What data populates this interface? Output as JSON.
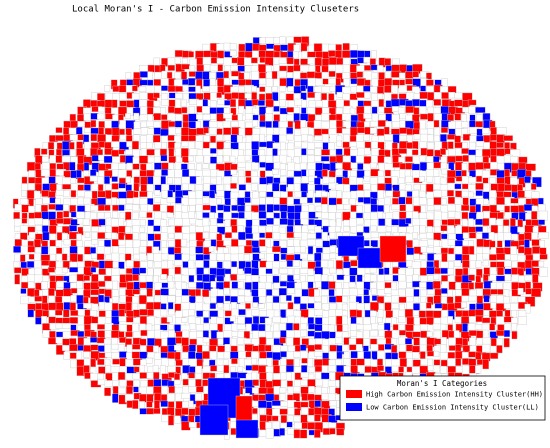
{
  "title": "Local Moran's I - Carbon Emission Intensity Cluseters",
  "legend": {
    "title": "Moran's I Categories",
    "items": [
      {
        "label": "High Carbon Emission Intensity Cluster(HH)",
        "color": "#ff0000"
      },
      {
        "label": "Low Carbon Emission Intensity Cluster(LL)",
        "color": "#0000ff"
      }
    ]
  }
}
